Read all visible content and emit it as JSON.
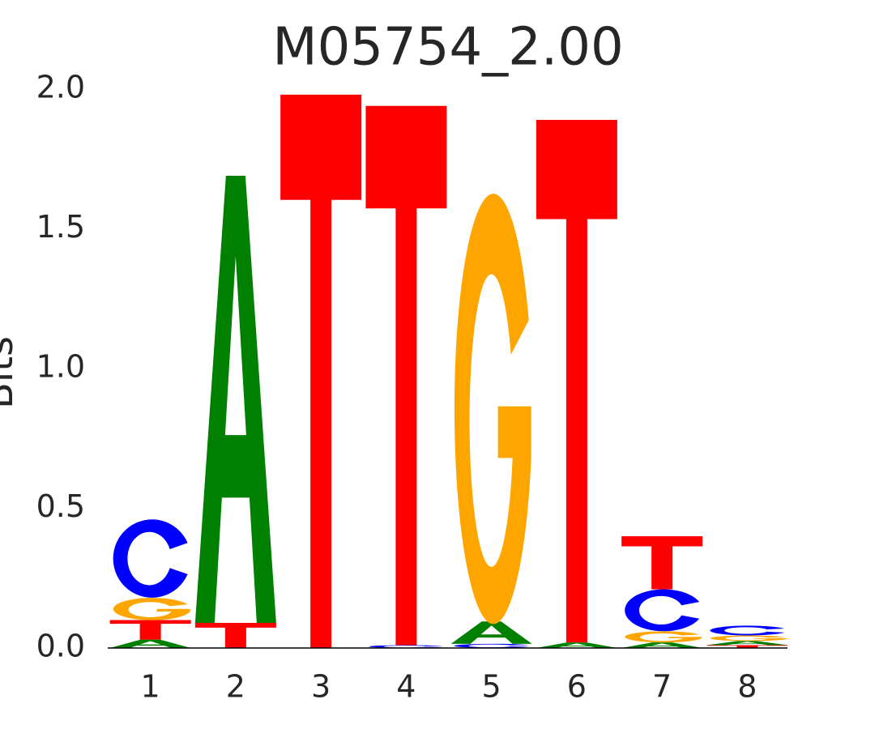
{
  "chart_data": {
    "type": "logo",
    "title": "M05754_2.00",
    "y_label": "Bits",
    "categories": [
      "1",
      "2",
      "3",
      "4",
      "5",
      "6",
      "7",
      "8"
    ],
    "series": [
      {
        "name": "A",
        "color": "#008000",
        "values": [
          0.03,
          1.6,
          0,
          0,
          0.08,
          0.02,
          0.02,
          0.015
        ]
      },
      {
        "name": "C",
        "color": "#0000ff",
        "values": [
          0.28,
          0,
          0,
          0.01,
          0.015,
          0,
          0.15,
          0.035
        ]
      },
      {
        "name": "G",
        "color": "#ffa500",
        "values": [
          0.08,
          0,
          0,
          0,
          1.54,
          0,
          0.04,
          0.02
        ]
      },
      {
        "name": "T",
        "color": "#ff0000",
        "values": [
          0.07,
          0.09,
          1.98,
          1.93,
          0,
          1.87,
          0.19,
          0.01
        ]
      }
    ],
    "ylim": [
      0,
      2
    ],
    "yticks": [
      {
        "value": 0,
        "label": "0.0"
      },
      {
        "value": 0.5,
        "label": "0.5"
      },
      {
        "value": 1,
        "label": "1.0"
      },
      {
        "value": 1.5,
        "label": "1.5"
      },
      {
        "value": 2,
        "label": "2.0"
      }
    ]
  }
}
